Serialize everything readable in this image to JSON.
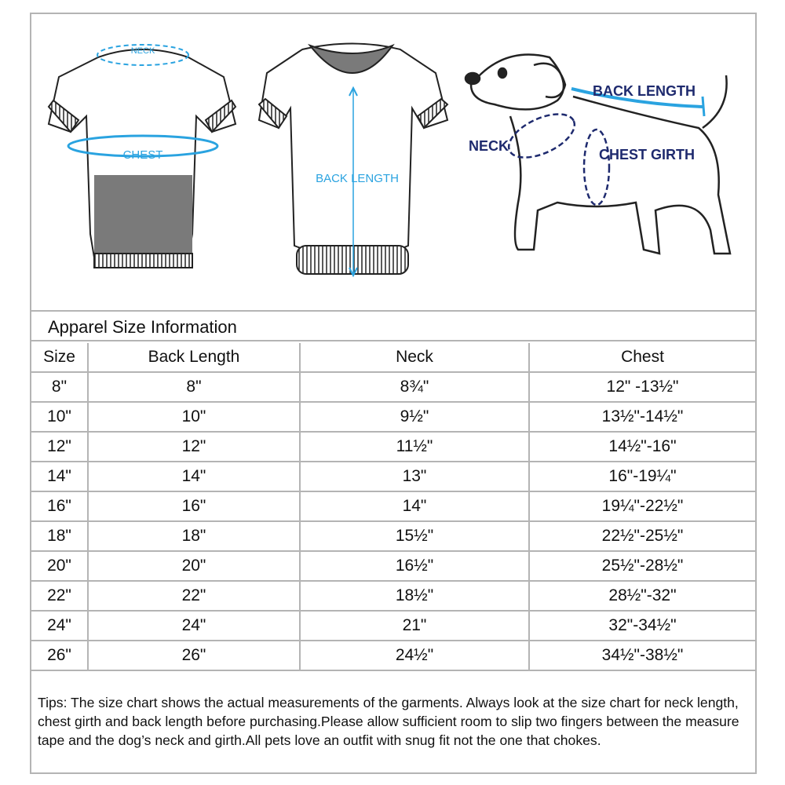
{
  "illustration": {
    "shirt_back_labels": {
      "neck": "NECK",
      "chest": "CHEST"
    },
    "shirt_front_label": "BACK LENGTH",
    "dog_labels": {
      "back_length": "BACK LENGTH",
      "neck": "NECK",
      "chest_girth": "CHEST GIRTH"
    },
    "colors": {
      "light_blue": "#2aa3e0",
      "navy": "#1e2a6e",
      "gray_fill": "#7a7a7a"
    }
  },
  "table": {
    "title": "Apparel Size Information",
    "headers": [
      "Size",
      "Back Length",
      "Neck",
      "Chest"
    ],
    "rows": [
      [
        "8\"",
        "8\"",
        "8¾\"",
        "12\" -13½\""
      ],
      [
        "10\"",
        "10\"",
        "9½\"",
        "13½\"-14½\""
      ],
      [
        "12\"",
        "12\"",
        "11½\"",
        "14½\"-16\""
      ],
      [
        "14\"",
        "14\"",
        "13\"",
        "16\"-19¼\""
      ],
      [
        "16\"",
        "16\"",
        "14\"",
        "19¼\"-22½\""
      ],
      [
        "18\"",
        "18\"",
        "15½\"",
        "22½\"-25½\""
      ],
      [
        "20\"",
        "20\"",
        "16½\"",
        "25½\"-28½\""
      ],
      [
        "22\"",
        "22\"",
        "18½\"",
        "28½\"-32\""
      ],
      [
        "24\"",
        "24\"",
        "21\"",
        "32\"-34½\""
      ],
      [
        "26\"",
        "26\"",
        "24½\"",
        "34½\"-38½\""
      ]
    ]
  },
  "tips": "Tips:  The size chart shows the actual measurements of the  garments.  Always look at the size chart for neck length, chest girth and back length before purchasing.Please allow sufficient room to slip two fingers between the measure tape and the dog’s neck and girth.All pets love an outfit with snug fit not the one that chokes."
}
